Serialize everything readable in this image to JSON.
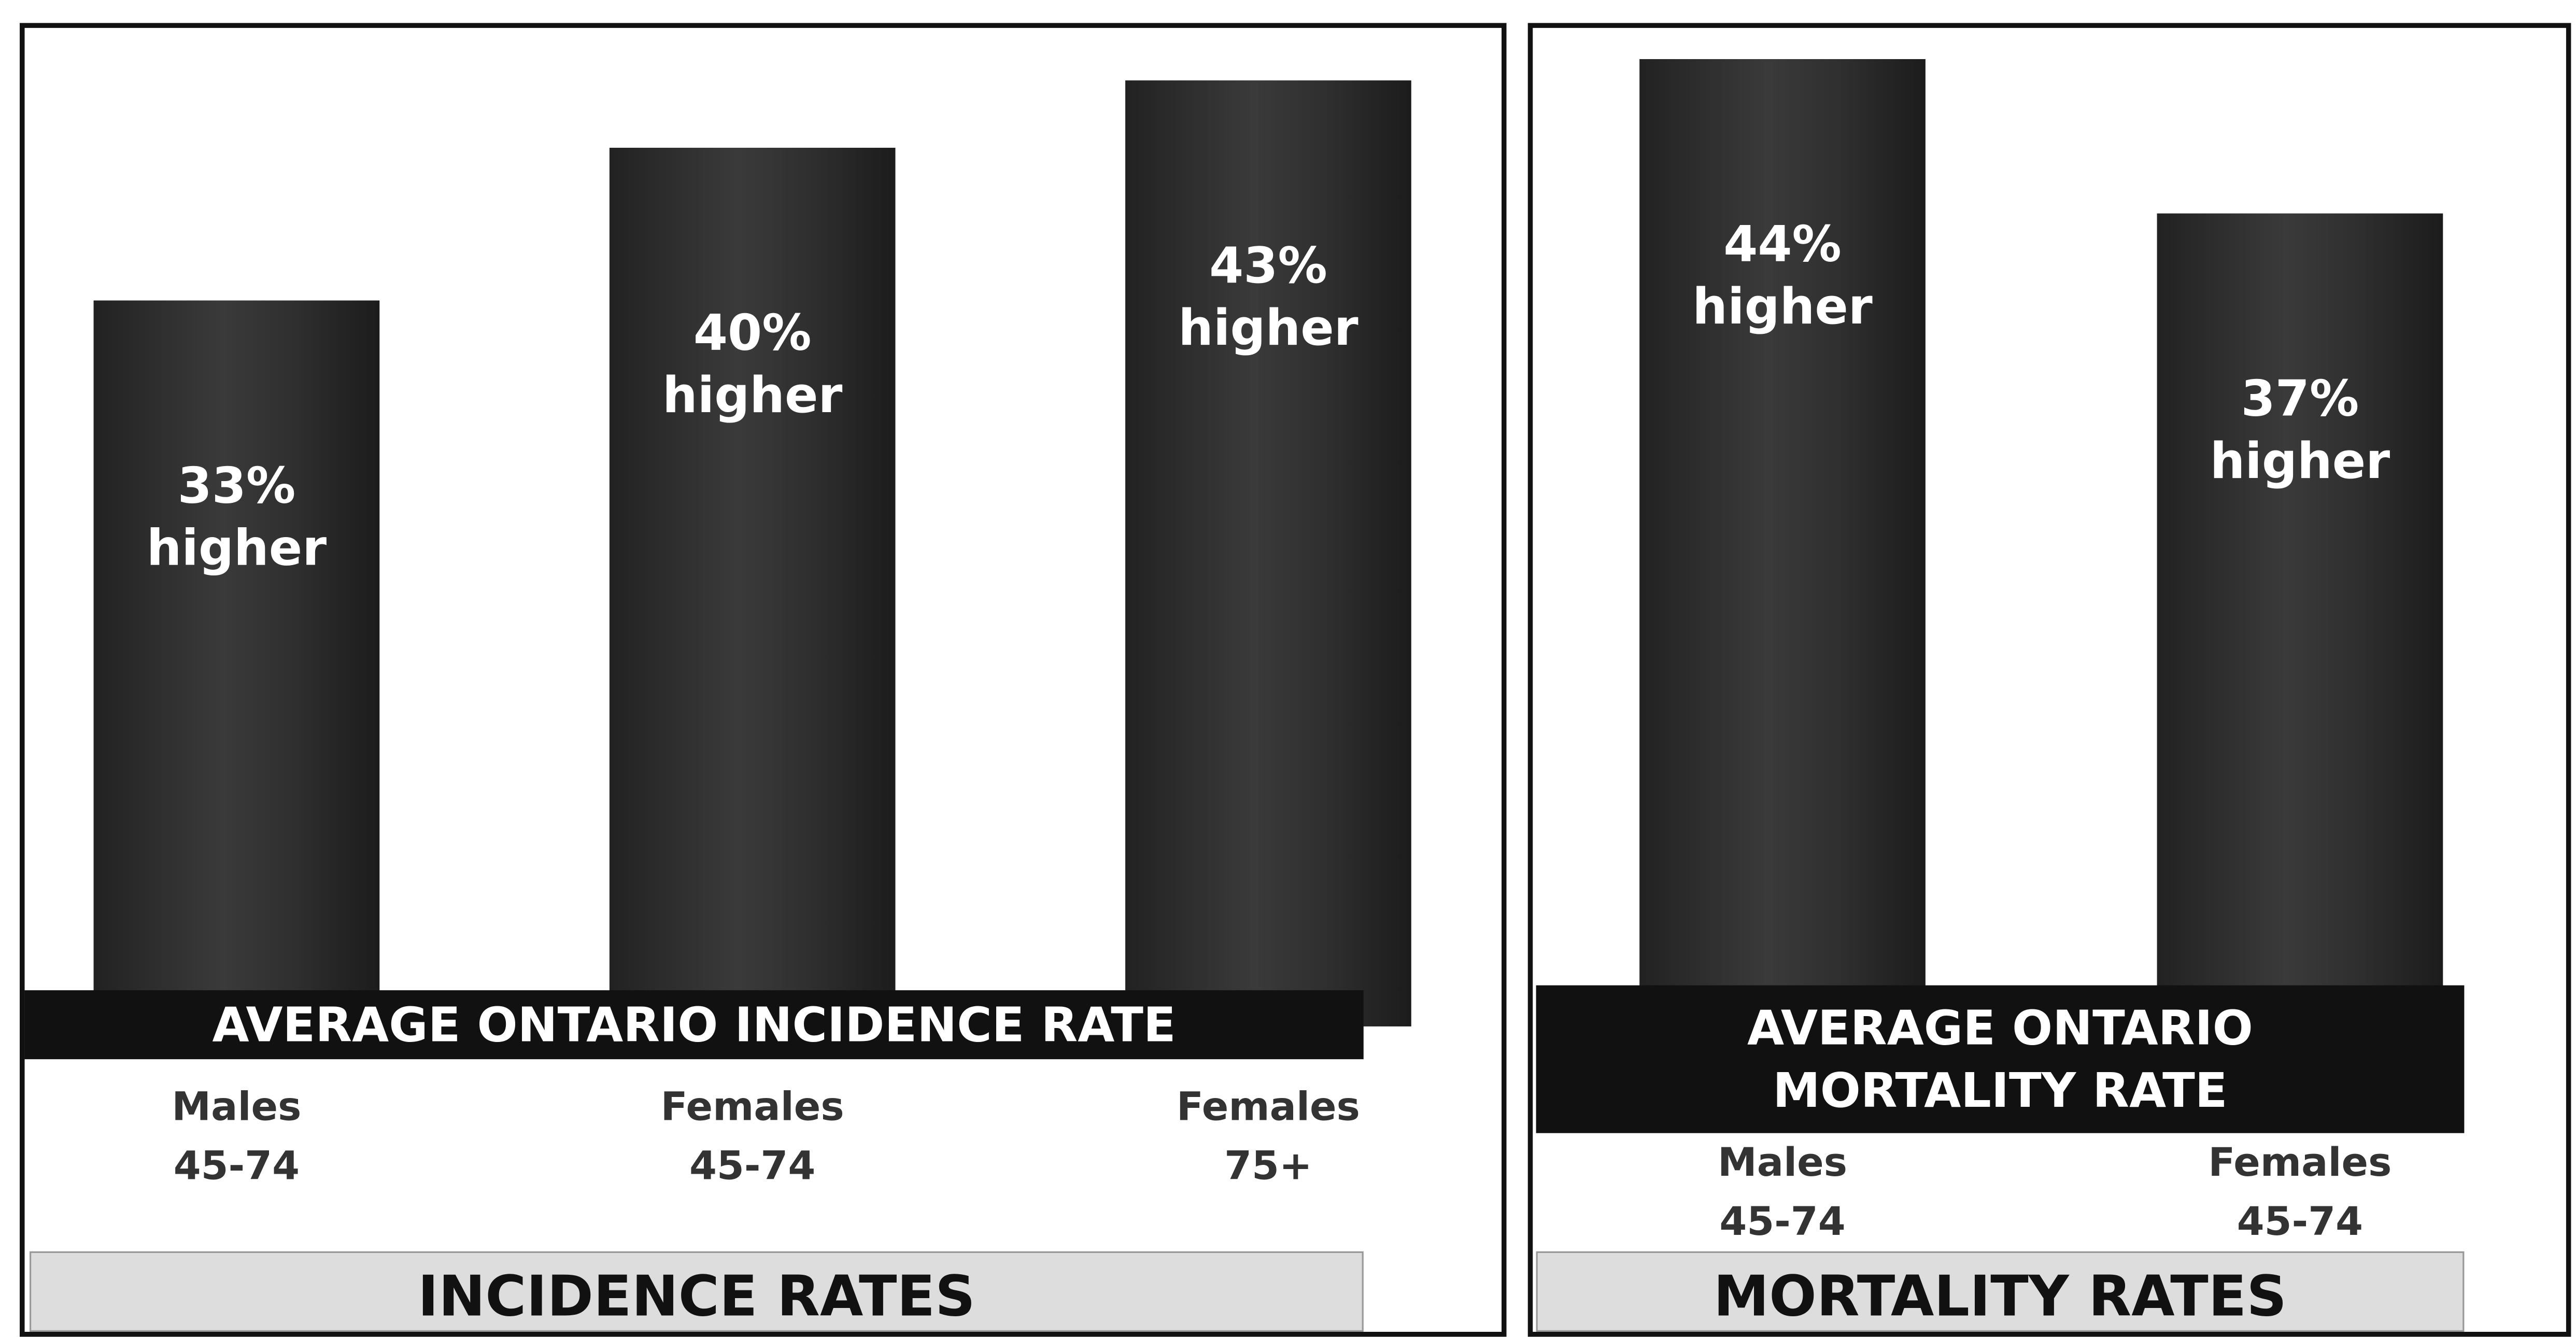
{
  "chart_data": [
    {
      "type": "bar",
      "title": "INCIDENCE RATES",
      "annotation": "AVERAGE ONTARIO INCIDENCE RATE",
      "categories": [
        "Males\n45-74",
        "Females\n45-74",
        "Females\n75+"
      ],
      "values": [
        33,
        40,
        43
      ],
      "value_labels": [
        "33%\nhigher",
        "40%\nhigher",
        "43%\nhigher"
      ],
      "color": "#2b2b2b"
    },
    {
      "type": "bar",
      "title": "MORTALITY RATES",
      "annotation": "AVERAGE ONTARIO\nMORTALITY RATE",
      "categories": [
        "Males\n45-74",
        "Females\n45-74"
      ],
      "values": [
        44,
        37
      ],
      "value_labels": [
        "44%\nhigher",
        "37%\nhigher"
      ],
      "color": "#2b2b2b"
    }
  ]
}
